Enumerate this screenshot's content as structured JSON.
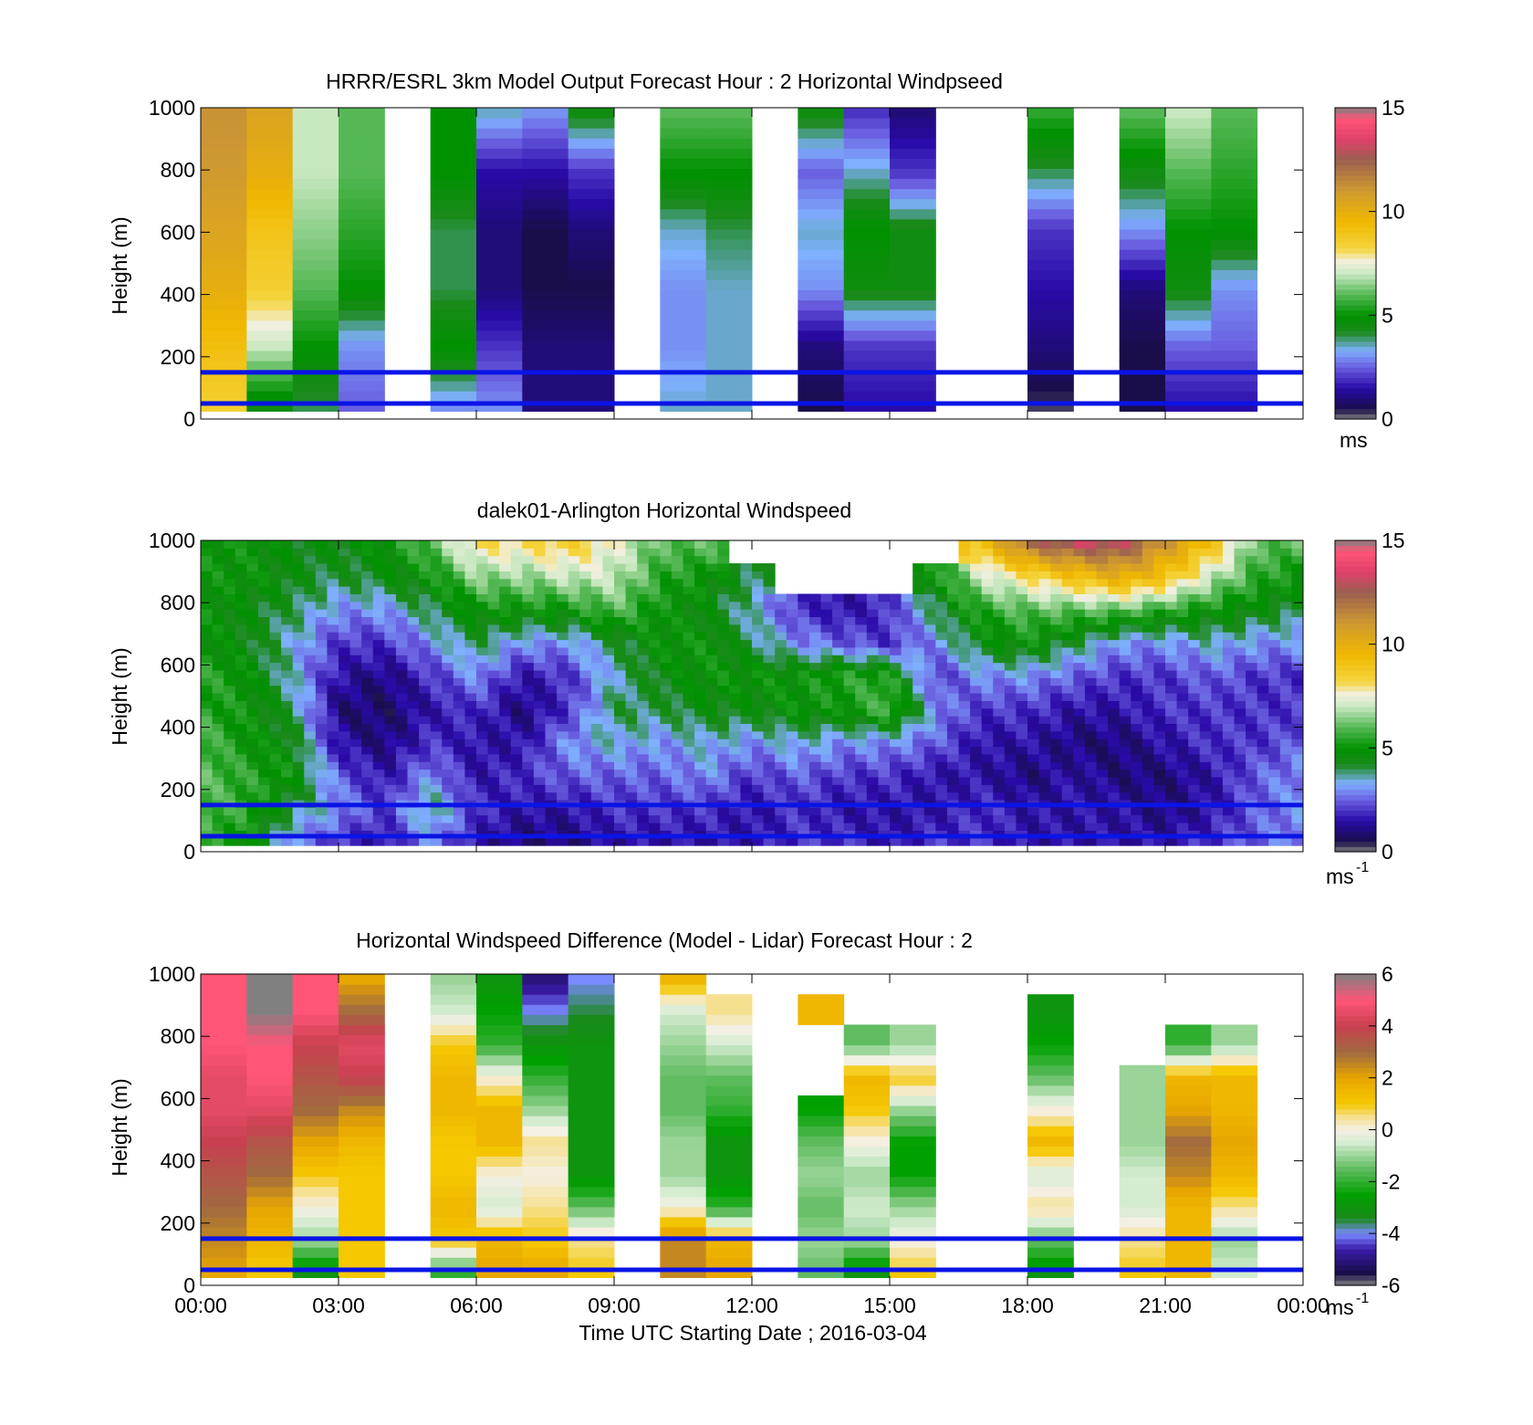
{
  "figure": {
    "x_title": "Time UTC  Starting Date ; 2016-03-04",
    "x_tick_labels": [
      "00:00",
      "03:00",
      "06:00",
      "09:00",
      "12:00",
      "15:00",
      "18:00",
      "21:00",
      "00:00"
    ],
    "overlay_lines_color": "#0a14e6",
    "overlay_lines_height_m": [
      150,
      50
    ]
  },
  "chart_data": [
    {
      "type": "heatmap",
      "title": "HRRR/ESRL 3km Model Output   Forecast Hour : 2 Horizontal Windpseed",
      "ylabel": "Height (m)",
      "ylim": [
        0,
        1000
      ],
      "y_ticks": [
        0,
        200,
        400,
        600,
        800,
        1000
      ],
      "colorbar": {
        "min": 0,
        "max": 15,
        "ticks": [
          0,
          5,
          10,
          15
        ],
        "unit": "ms"
      },
      "columns": [
        {
          "hour": 0.5,
          "profile": [
            8.5,
            9.2,
            10,
            10.5,
            11,
            11.2
          ]
        },
        {
          "hour": 1.5,
          "profile": [
            4.5,
            7,
            8.5,
            9,
            10,
            10.5
          ]
        },
        {
          "hour": 2.5,
          "profile": [
            4,
            5,
            6,
            6.5,
            7,
            7
          ]
        },
        {
          "hour": 3.5,
          "profile": [
            2.5,
            3,
            5,
            5.5,
            6,
            6
          ]
        },
        {
          "hour": 5.5,
          "profile": [
            3,
            5,
            4,
            4,
            5,
            5
          ]
        },
        {
          "hour": 6.5,
          "profile": [
            3,
            2,
            1,
            1,
            1.5,
            3.5
          ]
        },
        {
          "hour": 7.5,
          "profile": [
            1,
            1,
            0.5,
            0.5,
            1.5,
            3
          ]
        },
        {
          "hour": 8.5,
          "profile": [
            1,
            1,
            0.5,
            1,
            2,
            4.5
          ]
        },
        {
          "hour": 10.5,
          "profile": [
            3.5,
            3,
            3,
            3.5,
            5,
            6
          ]
        },
        {
          "hour": 11.5,
          "profile": [
            3.5,
            3.5,
            3.5,
            4,
            5,
            6
          ]
        },
        {
          "hour": 13.5,
          "profile": [
            0.5,
            1,
            3,
            3.5,
            2.5,
            4.5
          ]
        },
        {
          "hour": 14.5,
          "profile": [
            1.5,
            2,
            4.5,
            5,
            3.5,
            2
          ]
        },
        {
          "hour": 15.5,
          "profile": [
            1.5,
            2,
            4.5,
            4.5,
            2,
            1
          ]
        },
        {
          "hour": 18.5,
          "profile": [
            0.3,
            1,
            1.5,
            2,
            4,
            5.5
          ]
        },
        {
          "hour": 20.5,
          "profile": [
            0.5,
            0.5,
            1,
            3,
            4.5,
            6
          ]
        },
        {
          "hour": 21.5,
          "profile": [
            1.5,
            2.5,
            4.5,
            5,
            6,
            7
          ]
        },
        {
          "hour": 22.5,
          "profile": [
            1.5,
            2.5,
            3,
            5,
            5.5,
            6
          ]
        }
      ]
    },
    {
      "type": "heatmap",
      "title": "dalek01-Arlington  Horizontal Windspeed",
      "ylabel": "Height (m)",
      "ylim": [
        0,
        1000
      ],
      "y_ticks": [
        0,
        200,
        400,
        600,
        800,
        1000
      ],
      "colorbar": {
        "min": 0,
        "max": 15,
        "ticks": [
          0,
          5,
          10,
          15
        ],
        "unit": "ms",
        "unit_superscript": "-1"
      },
      "time_range_hours": [
        0,
        24
      ],
      "profiles": [
        {
          "hour": 0.0,
          "profile": [
            5.5,
            6,
            6,
            6,
            5.5,
            5.5,
            5,
            5,
            5,
            5
          ]
        },
        {
          "hour": 1.0,
          "profile": [
            5,
            5.5,
            5.5,
            5,
            5,
            5,
            4.5,
            4.5,
            5,
            5
          ]
        },
        {
          "hour": 2.0,
          "profile": [
            3,
            4,
            5,
            4.5,
            4,
            3.5,
            3.5,
            4,
            4.5,
            4.5
          ]
        },
        {
          "hour": 3.0,
          "profile": [
            2,
            3,
            2.5,
            1.5,
            1,
            1.5,
            2,
            3,
            4,
            4.5
          ]
        },
        {
          "hour": 4.0,
          "profile": [
            1.5,
            2,
            1.5,
            1,
            0.8,
            1,
            2,
            3,
            4.5,
            5
          ]
        },
        {
          "hour": 5.0,
          "profile": [
            3,
            4,
            3,
            2,
            1.5,
            2,
            3,
            4,
            5,
            6
          ]
        },
        {
          "hour": 6.0,
          "profile": [
            1.5,
            2,
            1.5,
            1.5,
            2,
            3,
            4,
            5,
            6.5,
            8
          ]
        },
        {
          "hour": 7.0,
          "profile": [
            1,
            1.5,
            2,
            1.5,
            1,
            1.5,
            3,
            5,
            6.5,
            8
          ]
        },
        {
          "hour": 8.0,
          "profile": [
            1,
            1.5,
            2.5,
            3,
            2,
            2,
            3,
            5,
            7,
            8.5
          ]
        },
        {
          "hour": 9.0,
          "profile": [
            1.5,
            2,
            2.5,
            3.5,
            4,
            3.5,
            4,
            6,
            7,
            7.5
          ]
        },
        {
          "hour": 10.0,
          "profile": [
            1.5,
            2,
            2.5,
            3,
            4,
            4.5,
            5,
            5,
            5.5,
            6
          ]
        },
        {
          "hour": 11.0,
          "profile": [
            1.5,
            2,
            3,
            3.5,
            4.5,
            5,
            5,
            4.5,
            5,
            6
          ]
        },
        {
          "hour": 12.0,
          "profile": [
            1.5,
            1.5,
            2,
            3,
            4.5,
            5,
            4,
            3.5,
            4,
            null
          ]
        },
        {
          "hour": 13.0,
          "profile": [
            2,
            2,
            2.5,
            3.5,
            5,
            5,
            3,
            2,
            null,
            null
          ]
        },
        {
          "hour": 14.0,
          "profile": [
            2,
            1.5,
            2,
            3,
            5,
            5.5,
            2.5,
            1.5,
            null,
            null
          ]
        },
        {
          "hour": 15.0,
          "profile": [
            1.5,
            1.5,
            2,
            3,
            6,
            5.5,
            2,
            2,
            null,
            null
          ]
        },
        {
          "hour": 16.0,
          "profile": [
            2,
            1.5,
            1.5,
            2.5,
            3,
            2,
            3,
            4,
            5,
            null
          ]
        },
        {
          "hour": 17.0,
          "profile": [
            2,
            2,
            1.5,
            1.5,
            2,
            3,
            4.5,
            5.5,
            7,
            9
          ]
        },
        {
          "hour": 18.0,
          "profile": [
            1.5,
            1.5,
            1,
            1.5,
            2,
            3,
            5,
            6,
            8,
            12
          ]
        },
        {
          "hour": 19.0,
          "profile": [
            1.5,
            1.5,
            1.5,
            1,
            1.5,
            2.5,
            4,
            6,
            9,
            13
          ]
        },
        {
          "hour": 20.0,
          "profile": [
            1.5,
            1.5,
            1,
            1,
            1.5,
            2,
            3,
            6,
            10,
            13
          ]
        },
        {
          "hour": 21.0,
          "profile": [
            1.5,
            1,
            1,
            1.5,
            2,
            2,
            3,
            5.5,
            9,
            11
          ]
        },
        {
          "hour": 22.0,
          "profile": [
            2,
            1.5,
            1.5,
            2,
            2,
            2.5,
            3.5,
            5,
            7,
            9
          ]
        },
        {
          "hour": 23.0,
          "profile": [
            2.5,
            2.5,
            2.5,
            2,
            2,
            2,
            3,
            4.5,
            5.5,
            6
          ]
        },
        {
          "hour": 24.0,
          "profile": [
            3,
            3,
            3,
            2.5,
            2,
            2,
            3,
            4,
            5,
            6
          ]
        }
      ]
    },
    {
      "type": "heatmap",
      "title": "Horizontal Windspeed Difference (Model - Lidar) Forecast Hour : 2",
      "ylabel": "Height (m)",
      "ylim": [
        0,
        1000
      ],
      "y_ticks": [
        0,
        200,
        400,
        600,
        800,
        1000
      ],
      "xlabel": "Time UTC  Starting Date ; 2016-03-04",
      "colorbar": {
        "min": -6,
        "max": 6,
        "ticks": [
          -6,
          -4,
          -2,
          0,
          2,
          4,
          6
        ],
        "unit": "ms",
        "unit_superscript": "-1"
      },
      "columns": [
        {
          "hour": 0.5,
          "profile": [
            2,
            2.5,
            3,
            3.5,
            4,
            4.5,
            4.5,
            5,
            5,
            5
          ]
        },
        {
          "hour": 1.5,
          "profile": [
            1,
            1.5,
            2,
            3,
            3.5,
            4.5,
            5,
            5,
            6,
            6
          ]
        },
        {
          "hour": 2.5,
          "profile": [
            -3,
            -1,
            0,
            1,
            2,
            3,
            3.5,
            4,
            5,
            5
          ]
        },
        {
          "hour": 3.5,
          "profile": [
            1,
            1,
            1,
            1,
            1.5,
            2.5,
            4,
            4.5,
            3,
            2
          ]
        },
        {
          "hour": 5.5,
          "profile": [
            -2,
            1,
            1.5,
            1,
            1,
            1.5,
            1.5,
            1,
            -0.5,
            -1
          ]
        },
        {
          "hour": 6.5,
          "profile": [
            2,
            1.5,
            -0.5,
            0,
            1.5,
            1.5,
            0,
            -2,
            -2.5,
            -3
          ]
        },
        {
          "hour": 7.5,
          "profile": [
            2,
            1,
            0.5,
            0,
            0.5,
            -1,
            -2,
            -3,
            -4,
            -5
          ]
        },
        {
          "hour": 8.5,
          "profile": [
            1,
            0.5,
            -1.5,
            -3,
            -3,
            -3,
            -3,
            -3,
            -3.5,
            -4
          ]
        },
        {
          "hour": 10.5,
          "profile": [
            2.5,
            2.5,
            0,
            -1,
            -1,
            -1.5,
            -1.5,
            -1,
            -0.5,
            1.5
          ]
        },
        {
          "hour": 11.5,
          "profile": [
            2,
            1.5,
            -2,
            -3,
            -3,
            -2,
            -1.5,
            -0.5,
            0.5,
            null
          ]
        },
        {
          "hour": 13.5,
          "profile": [
            -1.5,
            -1,
            -1.5,
            -1,
            -1.5,
            -2.5,
            null,
            null,
            1.5,
            null
          ]
        },
        {
          "hour": 14.5,
          "profile": [
            -3,
            -1,
            -0.5,
            -1,
            0,
            1,
            1.5,
            -1.5,
            null,
            null
          ]
        },
        {
          "hour": 15.5,
          "profile": [
            1,
            0,
            -1,
            -2.5,
            -2.5,
            -1,
            1,
            -1,
            null,
            null
          ]
        },
        {
          "hour": 18.5,
          "profile": [
            -3,
            -1.5,
            0.5,
            -0.5,
            1.5,
            0,
            -1.5,
            -2.5,
            -3,
            null
          ]
        },
        {
          "hour": 20.5,
          "profile": [
            1,
            0.5,
            -0.5,
            -0.5,
            -1,
            -1,
            -1,
            null,
            null,
            null
          ]
        },
        {
          "hour": 21.5,
          "profile": [
            1.5,
            1.5,
            1.5,
            2.5,
            3,
            2,
            1.5,
            -2,
            null,
            null
          ]
        },
        {
          "hour": 22.5,
          "profile": [
            -0.5,
            -1,
            0.5,
            1.5,
            2,
            1.5,
            1.5,
            -1,
            null,
            null
          ]
        }
      ]
    }
  ]
}
